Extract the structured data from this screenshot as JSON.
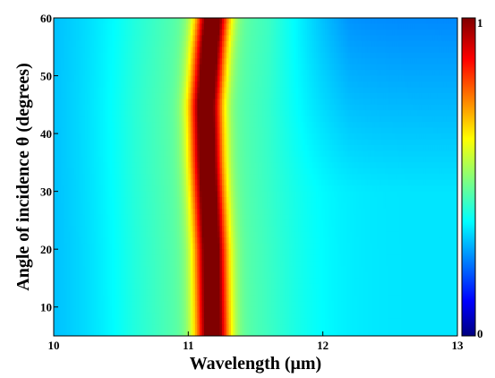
{
  "chart_data": {
    "type": "heatmap",
    "title": "",
    "xlabel": "Wavelength (μm)",
    "ylabel": "Angle of incidence θ (degrees)",
    "xlim": [
      10,
      13
    ],
    "ylim": [
      5,
      60
    ],
    "x_ticks": [
      10,
      11,
      12,
      13
    ],
    "x_tick_labels": [
      "10",
      "11",
      "12",
      "13"
    ],
    "y_ticks": [
      10,
      20,
      30,
      40,
      50,
      60
    ],
    "y_tick_labels": [
      "10",
      "20",
      "30",
      "40",
      "50",
      "60"
    ],
    "colorbar": {
      "min": 0,
      "max": 1,
      "tick_labels": [
        "0",
        "1"
      ],
      "colormap": "jet"
    },
    "peak": {
      "description": "absorption band",
      "center_wavelength_by_angle": [
        [
          5,
          11.18
        ],
        [
          20,
          11.17
        ],
        [
          35,
          11.14
        ],
        [
          45,
          11.13
        ],
        [
          55,
          11.16
        ],
        [
          60,
          11.18
        ]
      ],
      "peak_value": 1.0,
      "peak_fwhm_um": 0.2,
      "edge_shoulders": [
        {
          "wavelength": 11.0,
          "value": 0.55
        },
        {
          "wavelength": 11.35,
          "value": 0.6
        }
      ]
    },
    "background_level": 0.35,
    "grid": false
  }
}
